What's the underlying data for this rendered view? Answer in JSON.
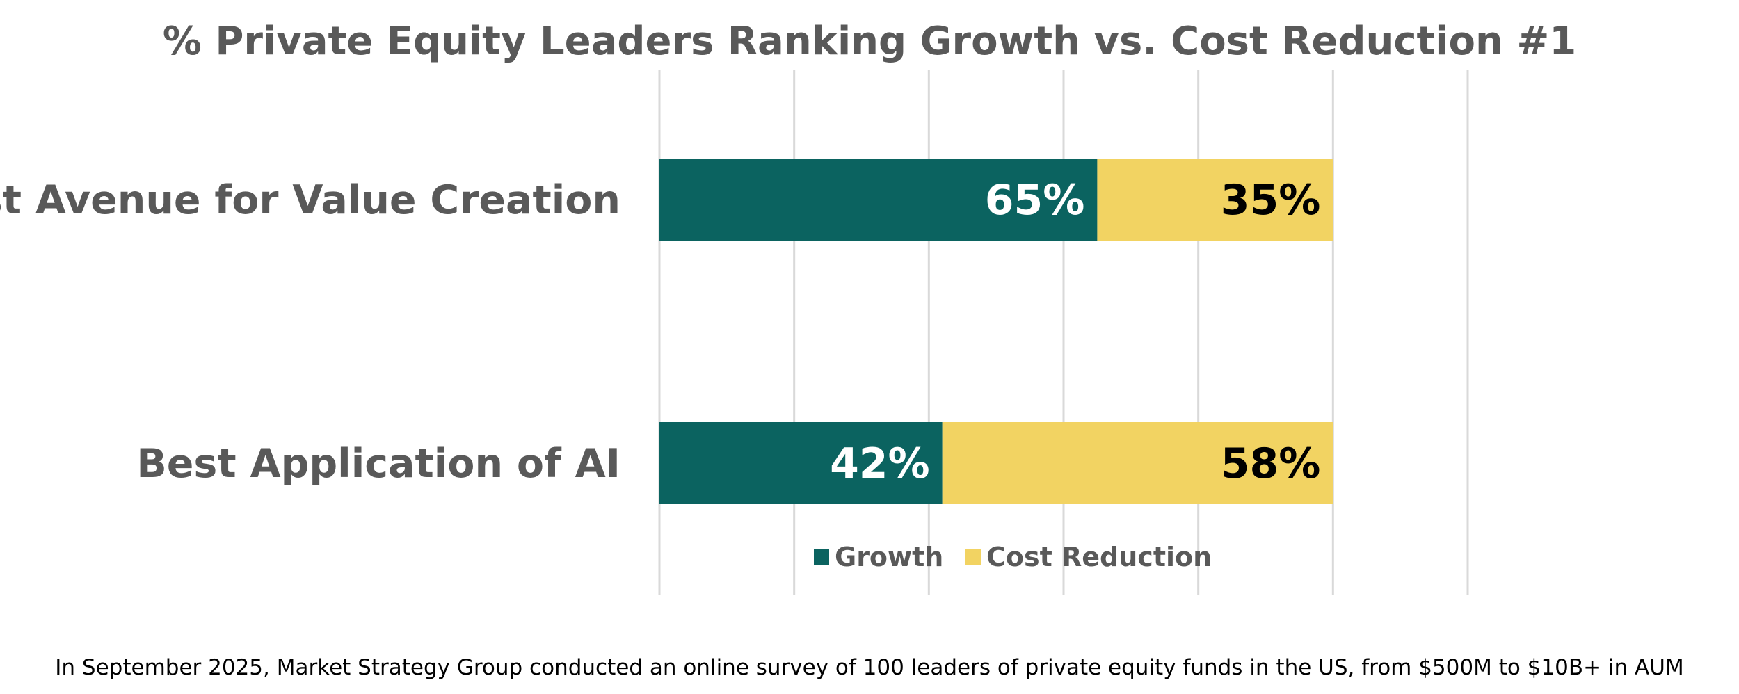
{
  "chart_data": {
    "type": "bar",
    "orientation": "horizontal",
    "stacked": true,
    "title": "% Private Equity Leaders Ranking Growth vs. Cost Reduction #1",
    "categories": [
      "Best Avenue for Value Creation",
      "Best Application of AI"
    ],
    "series": [
      {
        "name": "Growth",
        "values": [
          65,
          42
        ],
        "labels": [
          "65%",
          "42%"
        ],
        "color": "#0b6360",
        "label_color": "#ffffff"
      },
      {
        "name": "Cost Reduction",
        "values": [
          35,
          58
        ],
        "labels": [
          "35%",
          "58%"
        ],
        "color": "#f2d362",
        "label_color": "#000000"
      }
    ],
    "xlim": [
      0,
      120
    ],
    "grid": true,
    "legend_position": "bottom"
  },
  "footnote": "In September 2025, Market Strategy Group conducted an online survey of 100 leaders of private equity funds in the US, from $500M to $10B+ in AUM"
}
